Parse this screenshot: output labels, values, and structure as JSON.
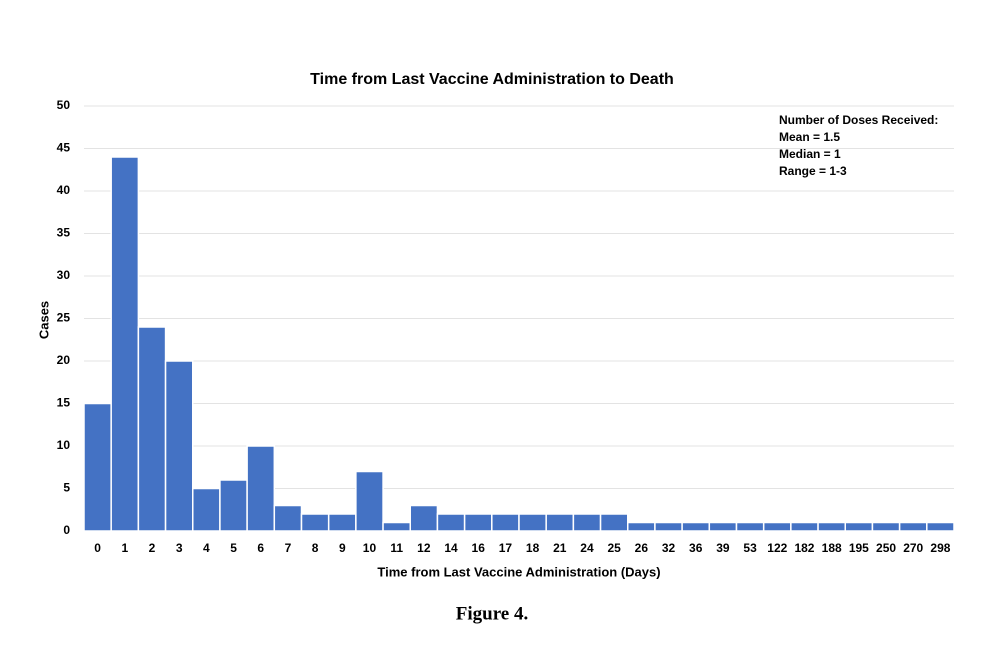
{
  "chart_data": {
    "type": "bar",
    "title": "Time from Last Vaccine Administration to Death",
    "x_label": "Time from Last Vaccine Administration (Days)",
    "y_label": "Cases",
    "categories": [
      "0",
      "1",
      "2",
      "3",
      "4",
      "5",
      "6",
      "7",
      "8",
      "9",
      "10",
      "11",
      "12",
      "14",
      "16",
      "17",
      "18",
      "21",
      "24",
      "25",
      "26",
      "32",
      "36",
      "39",
      "53",
      "122",
      "182",
      "188",
      "195",
      "250",
      "270",
      "298"
    ],
    "values": [
      15,
      44,
      24,
      20,
      5,
      6,
      10,
      3,
      2,
      2,
      7,
      1,
      3,
      2,
      2,
      2,
      2,
      2,
      2,
      2,
      1,
      1,
      1,
      1,
      1,
      1,
      1,
      1,
      1,
      1,
      1,
      1
    ],
    "color": "#4472c4",
    "ylim": [
      0,
      50
    ],
    "yticks": [
      0,
      5,
      10,
      15,
      20,
      25,
      30,
      35,
      40,
      45,
      50
    ],
    "grid": true,
    "annotations": [
      "Number of Doses Received:",
      "Mean = 1.5",
      "Median = 1",
      "Range = 1-3"
    ]
  },
  "caption": "Figure 4."
}
